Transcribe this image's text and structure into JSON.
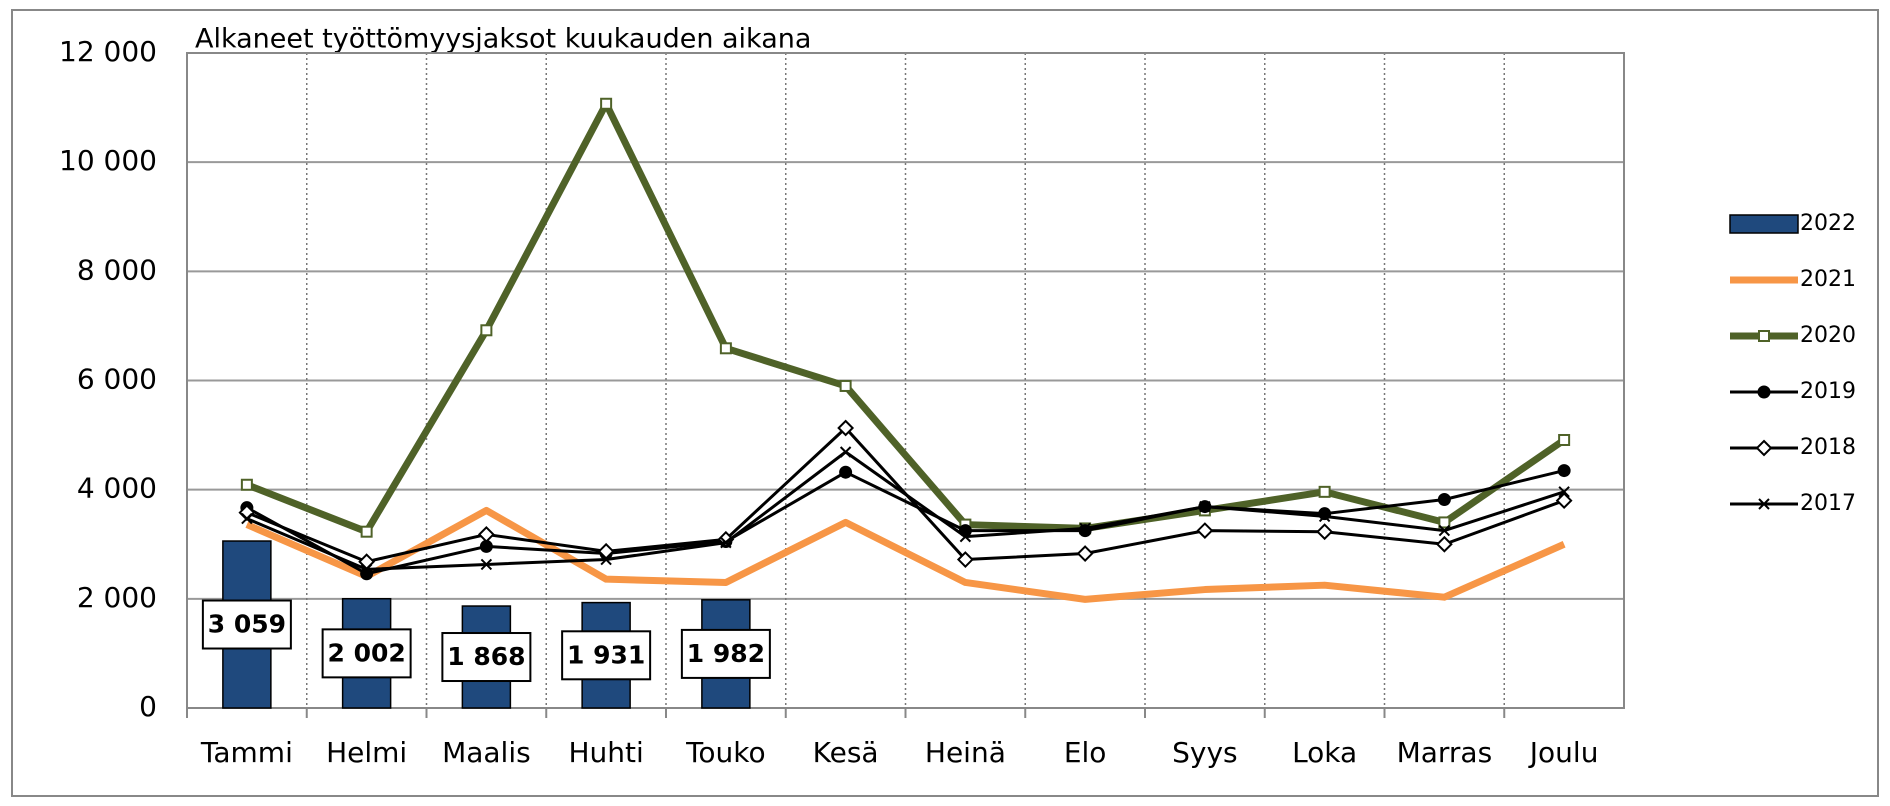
{
  "chart_data": {
    "type": "bar_line",
    "title": "Alkaneet työttömyysjaksot kuukauden aikana",
    "categories": [
      "Tammi",
      "Helmi",
      "Maalis",
      "Huhti",
      "Touko",
      "Kesä",
      "Heinä",
      "Elo",
      "Syys",
      "Loka",
      "Marras",
      "Joulu"
    ],
    "ylim": [
      0,
      12000
    ],
    "yticks": [
      0,
      {
        "value": 2000,
        "label": "2 000"
      },
      {
        "value": 4000,
        "label": "4 000"
      },
      {
        "value": 6000,
        "label": "6 000"
      },
      {
        "value": 8000,
        "label": "8 000"
      },
      {
        "value": 10000,
        "label": "10 000"
      },
      {
        "value": 12000,
        "label": "12 000"
      }
    ],
    "grid": true,
    "legend": "right",
    "series": [
      {
        "name": "2022",
        "type": "bar",
        "color": "#1f497d",
        "values": [
          3059,
          2002,
          1868,
          1931,
          1982,
          null,
          null,
          null,
          null,
          null,
          null,
          null
        ],
        "value_labels": [
          "3 059",
          "2 002",
          "1 868",
          "1 931",
          "1 982",
          null,
          null,
          null,
          null,
          null,
          null,
          null
        ]
      },
      {
        "name": "2021",
        "type": "line",
        "color": "#f79646",
        "width": 7,
        "marker": "none",
        "values": [
          3360,
          2410,
          3620,
          2360,
          2300,
          3400,
          2300,
          1990,
          2170,
          2250,
          2030,
          3000
        ]
      },
      {
        "name": "2020",
        "type": "line",
        "color": "#4f6228",
        "width": 7,
        "marker": "square",
        "values": [
          4090,
          3230,
          6920,
          11070,
          6590,
          5900,
          3360,
          3290,
          3620,
          3960,
          3400,
          4910
        ]
      },
      {
        "name": "2019",
        "type": "line",
        "color": "#000000",
        "width": 3,
        "marker": "circle",
        "values": [
          3670,
          2460,
          2960,
          2830,
          3050,
          4320,
          3250,
          3250,
          3690,
          3560,
          3820,
          4350
        ]
      },
      {
        "name": "2018",
        "type": "line",
        "color": "#000000",
        "width": 3,
        "marker": "diamond",
        "values": [
          3580,
          2680,
          3180,
          2870,
          3090,
          5130,
          2720,
          2830,
          3250,
          3230,
          3000,
          3800
        ]
      },
      {
        "name": "2017",
        "type": "line",
        "color": "#000000",
        "width": 3,
        "marker": "x",
        "values": [
          3470,
          2540,
          2630,
          2720,
          3030,
          4690,
          3140,
          3290,
          3690,
          3510,
          3250,
          3960
        ]
      }
    ]
  }
}
